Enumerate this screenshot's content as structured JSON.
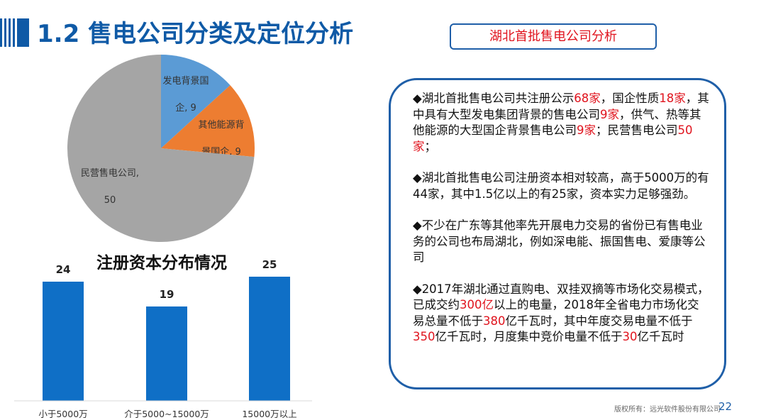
{
  "title": "1.2 售电公司分类及定位分析",
  "header_box": "湖北首批售电公司分析",
  "paragraphs": [
    [
      {
        "t": "◆湖北首批售电公司共注册公示"
      },
      {
        "t": "68家",
        "red": true
      },
      {
        "t": "，国企性质"
      },
      {
        "t": "18家",
        "red": true
      },
      {
        "t": "，其中具有大型发电集团背景的售电公司"
      },
      {
        "t": "9家",
        "red": true
      },
      {
        "t": "，供气、热等其他能源的大型国企背景售电公司"
      },
      {
        "t": "9家",
        "red": true
      },
      {
        "t": "；民营售电公司"
      },
      {
        "t": "50家",
        "red": true
      },
      {
        "t": "；"
      }
    ],
    [
      {
        "t": "◆湖北首批售电公司注册资本相对较高，高于5000万的有44家，其中1.5亿以上的有25家，资本实力足够强劲。"
      }
    ],
    [
      {
        "t": "◆不少在广东等其他率先开展电力交易的省份已有售电业务的公司也布局湖北，例如深电能、振国售电、爱康等公司"
      }
    ],
    [
      {
        "t": "◆2017年湖北通过直购电、双挂双摘等市场化交易模式，已成交约"
      },
      {
        "t": "300亿",
        "red": true
      },
      {
        "t": "以上的电量，2018年全省电力市场化交易总量不低于"
      },
      {
        "t": "380",
        "red": true
      },
      {
        "t": "亿千瓦时，其中年度交易电量不低于"
      },
      {
        "t": "350",
        "red": true
      },
      {
        "t": "亿千瓦时，月度集中竞价电量不低于"
      },
      {
        "t": "30",
        "red": true
      },
      {
        "t": "亿千瓦时"
      }
    ]
  ],
  "footer": "版权所有：远光软件股份有限公司",
  "page_number": "22",
  "chart_data": [
    {
      "type": "pie",
      "title": "",
      "slices": [
        {
          "label": "发电背景国企",
          "value": 9,
          "color": "#5b9bd5",
          "label_lines": [
            "发电背景国",
            "企, 9"
          ]
        },
        {
          "label": "其他能源背景国企",
          "value": 9,
          "color": "#ed7d31",
          "label_lines": [
            "其他能源背",
            "景国企, 9"
          ]
        },
        {
          "label": "民营售电公司",
          "value": 50,
          "color": "#a5a5a5",
          "label_lines": [
            "民营售电公司,",
            "50"
          ]
        }
      ],
      "start": "top",
      "direction": "clockwise"
    },
    {
      "type": "bar",
      "title": "注册资本分布情况",
      "categories": [
        "小于5000万",
        "介于5000~15000万",
        "15000万以上"
      ],
      "values": [
        24,
        19,
        25
      ],
      "color": "#0f6fc6",
      "ylim": [
        0,
        25
      ]
    }
  ]
}
